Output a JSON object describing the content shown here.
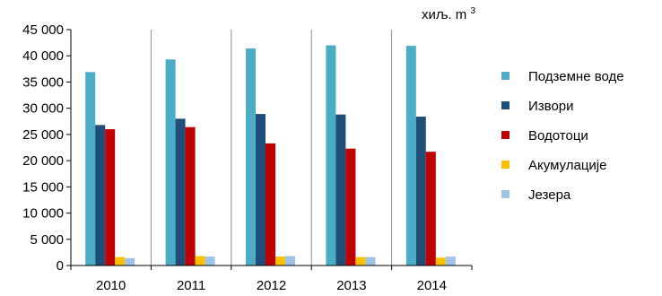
{
  "chart_data": {
    "type": "bar",
    "unit_label": "хиљ. m",
    "unit_superscript": "3",
    "categories": [
      "2010",
      "2011",
      "2012",
      "2013",
      "2014"
    ],
    "ylim": [
      0,
      45000
    ],
    "yticks": [
      0,
      5000,
      10000,
      15000,
      20000,
      25000,
      30000,
      35000,
      40000,
      45000
    ],
    "ytick_labels": [
      "0",
      "5 000",
      "10 000",
      "15 000",
      "20 000",
      "25 000",
      "30 000",
      "35 000",
      "40 000",
      "45 000"
    ],
    "grid": "vertical category separators",
    "legend_position": "right",
    "series": [
      {
        "name": "Подземне воде",
        "color": "#4bacc6",
        "values": [
          36900,
          39300,
          41400,
          42000,
          41900
        ]
      },
      {
        "name": "Извори",
        "color": "#1f4e79",
        "values": [
          26800,
          28000,
          28900,
          28800,
          28400
        ]
      },
      {
        "name": "Водотоци",
        "color": "#c00000",
        "values": [
          26000,
          26400,
          23300,
          22300,
          21700
        ]
      },
      {
        "name": "Акумулације",
        "color": "#ffc000",
        "values": [
          1600,
          1800,
          1700,
          1600,
          1500
        ]
      },
      {
        "name": "Језера",
        "color": "#9dc3e6",
        "values": [
          1400,
          1700,
          1800,
          1600,
          1700
        ]
      }
    ]
  }
}
